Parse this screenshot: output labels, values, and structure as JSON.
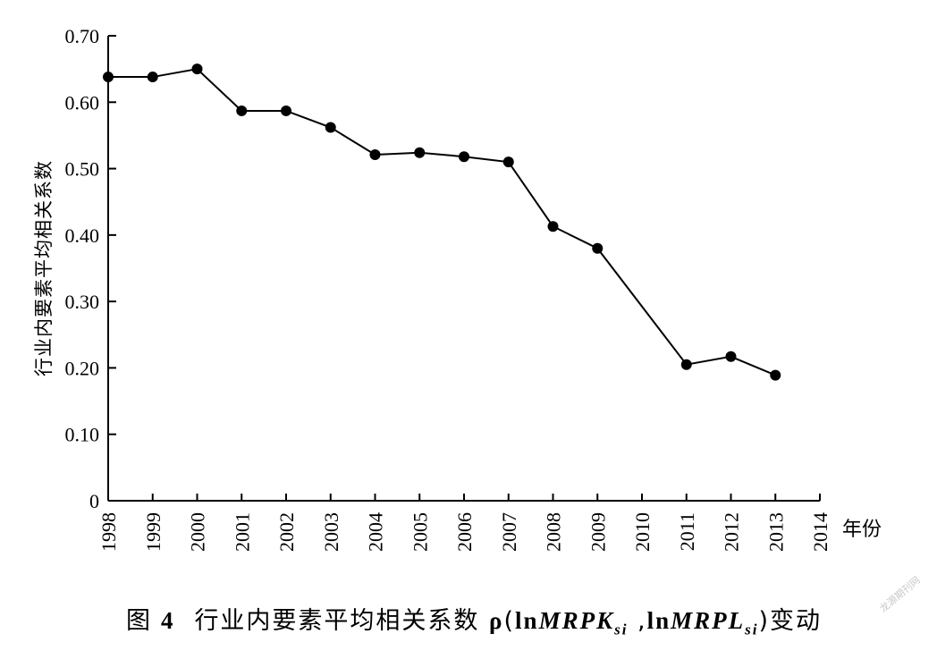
{
  "chart_data": {
    "type": "line",
    "ylabel": "行业内要素平均相关系数",
    "xlabel": "年份",
    "x": [
      1998,
      1999,
      2000,
      2001,
      2002,
      2003,
      2004,
      2005,
      2006,
      2007,
      2008,
      2009,
      2011,
      2012,
      2013
    ],
    "x_ticks": [
      "1998",
      "1999",
      "2000",
      "2001",
      "2002",
      "2003",
      "2004",
      "2005",
      "2006",
      "2007",
      "2008",
      "2009",
      "2010",
      "2011",
      "2012",
      "2013",
      "2014"
    ],
    "y_ticks": [
      "0",
      "0.10",
      "0.20",
      "0.30",
      "0.40",
      "0.50",
      "0.60",
      "0.70"
    ],
    "xlim": [
      1998,
      2014
    ],
    "ylim": [
      0,
      0.7
    ],
    "series": [
      {
        "values": [
          0.638,
          0.638,
          0.65,
          0.587,
          0.587,
          0.562,
          0.521,
          0.524,
          0.518,
          0.51,
          0.413,
          0.38,
          0.205,
          0.217,
          0.189
        ]
      }
    ],
    "grid": false,
    "line_color": "#000000",
    "marker_color": "#000000"
  },
  "caption": {
    "figure_label": "图",
    "figure_number": "4",
    "text": "行业内要素平均相关系数",
    "rho": "ρ",
    "open_paren": "(",
    "ln1": "ln",
    "var1": "MRPK",
    "sub1": "si",
    "comma": " ,",
    "ln2": "ln",
    "var2": "MRPL",
    "sub2": "si",
    "close_paren": ")",
    "suffix": "变动"
  },
  "watermark": "龙源期刊网"
}
